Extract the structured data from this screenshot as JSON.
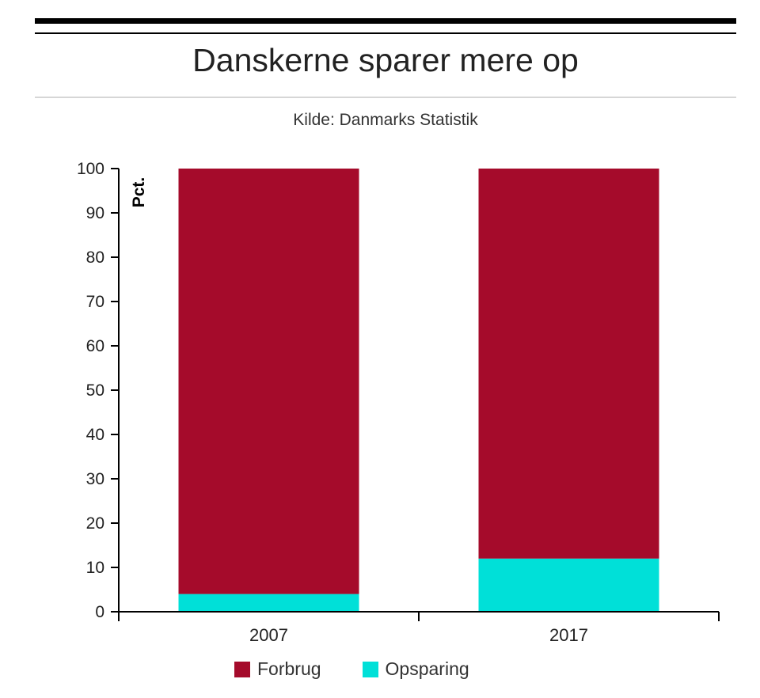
{
  "header": {
    "title": "Danskerne sparer mere op",
    "subtitle": "Kilde: Danmarks Statistik"
  },
  "chart_data": {
    "type": "bar",
    "stacked": true,
    "title": "Danskerne sparer mere op",
    "subtitle": "Kilde: Danmarks Statistik",
    "xlabel": "",
    "ylabel": "Pct.",
    "ylim": [
      0,
      100
    ],
    "yticks": [
      0,
      10,
      20,
      30,
      40,
      50,
      60,
      70,
      80,
      90,
      100
    ],
    "categories": [
      "2007",
      "2017"
    ],
    "series": [
      {
        "name": "Opsparing",
        "values": [
          4,
          12
        ],
        "color": "#00e0d8"
      },
      {
        "name": "Forbrug",
        "values": [
          96,
          88
        ],
        "color": "#a50b2b"
      }
    ],
    "grid": false,
    "legend": "bottom"
  },
  "legend": {
    "items": [
      {
        "label": "Forbrug",
        "color": "#a50b2b"
      },
      {
        "label": "Opsparing",
        "color": "#00e0d8"
      }
    ]
  }
}
